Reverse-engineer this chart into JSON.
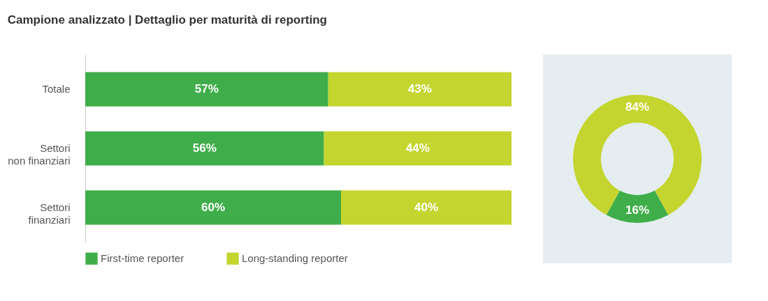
{
  "chart_data": [
    {
      "type": "bar",
      "title": "Campione analizzato | Dettaglio per maturità di reporting",
      "orientation": "horizontal",
      "stacked": true,
      "categories": [
        "Totale",
        "Settori non finanziari",
        "Settori finanziari"
      ],
      "series": [
        {
          "name": "First-time reporter",
          "color": "#3fae4a",
          "values": [
            57,
            56,
            60
          ],
          "value_labels": [
            "57%",
            "56%",
            "60%"
          ]
        },
        {
          "name": "Long-standing reporter",
          "color": "#c4d52f",
          "values": [
            43,
            44,
            40
          ],
          "value_labels": [
            "43%",
            "44%",
            "40%"
          ]
        }
      ],
      "legend": "bottom"
    },
    {
      "type": "donut",
      "categories": [
        null,
        null
      ],
      "values": [
        16,
        84
      ],
      "value_labels": [
        "16%",
        "84%"
      ],
      "colors": [
        "#3fae4a",
        "#c4d52f"
      ]
    }
  ]
}
